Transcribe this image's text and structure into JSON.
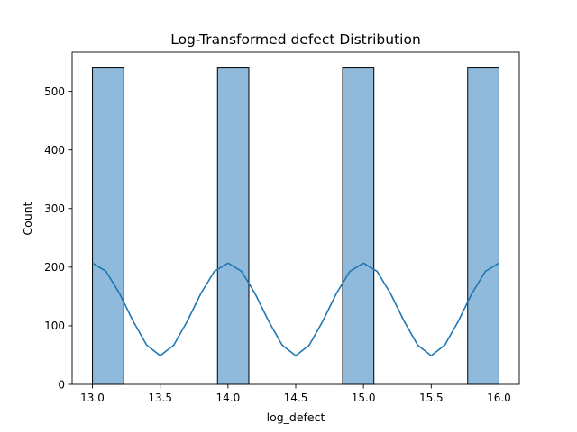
{
  "chart_data": {
    "type": "bar",
    "title": "Log-Transformed defect Distribution",
    "xlabel": "log_defect",
    "ylabel": "Count",
    "xlim": [
      12.85,
      16.15
    ],
    "ylim": [
      0,
      567
    ],
    "xticks": [
      13.0,
      13.5,
      14.0,
      14.5,
      15.0,
      15.5,
      16.0
    ],
    "xtick_labels": [
      "13.0",
      "13.5",
      "14.0",
      "14.5",
      "15.0",
      "15.5",
      "16.0"
    ],
    "yticks": [
      0,
      100,
      200,
      300,
      400,
      500
    ],
    "ytick_labels": [
      "0",
      "100",
      "200",
      "300",
      "400",
      "500"
    ],
    "grid": false,
    "bins": [
      {
        "x0": 13.0,
        "x1": 13.231,
        "count": 540
      },
      {
        "x0": 13.923,
        "x1": 14.154,
        "count": 540
      },
      {
        "x0": 14.846,
        "x1": 15.077,
        "count": 540
      },
      {
        "x0": 15.769,
        "x1": 16.0,
        "count": 540
      }
    ],
    "kde": {
      "x": [
        13.0,
        13.1,
        13.2,
        13.3,
        13.4,
        13.5,
        13.6,
        13.7,
        13.8,
        13.9,
        14.0,
        14.1,
        14.2,
        14.3,
        14.4,
        14.5,
        14.6,
        14.7,
        14.8,
        14.9,
        15.0,
        15.1,
        15.2,
        15.3,
        15.4,
        15.5,
        15.6,
        15.7,
        15.8,
        15.9,
        16.0
      ],
      "y": [
        207,
        193,
        155,
        108,
        67,
        49,
        67,
        108,
        155,
        193,
        207,
        193,
        155,
        108,
        67,
        49,
        67,
        108,
        155,
        193,
        207,
        193,
        155,
        108,
        67,
        49,
        67,
        108,
        155,
        193,
        207
      ]
    },
    "colors": {
      "bar_fill": "#8fbadb",
      "bar_edge": "#000000",
      "kde_line": "#1f77b4"
    }
  }
}
